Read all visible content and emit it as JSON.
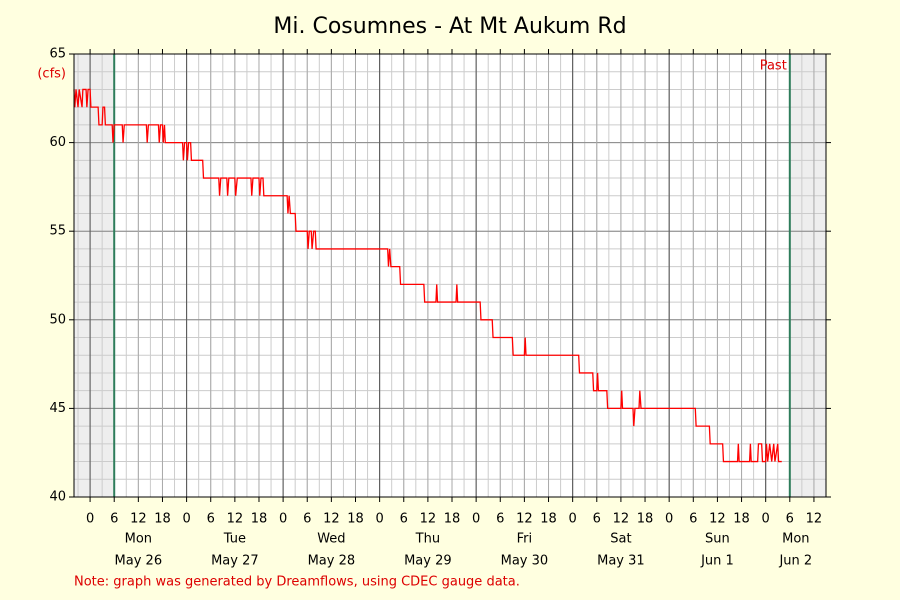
{
  "chart_data": {
    "type": "line",
    "title": "Mi. Cosumnes - At Mt Aukum Rd",
    "y_unit": "(cfs)",
    "annotation": "Past",
    "note": "Note: graph was generated by Dreamflows, using CDEC gauge data.",
    "xlim": [
      -4,
      183
    ],
    "ylim": [
      40,
      65
    ],
    "yticks": [
      40,
      45,
      50,
      55,
      60,
      65
    ],
    "xticks": [
      0,
      6,
      12,
      18,
      {
        "value": 24,
        "label": "0"
      },
      {
        "value": 30,
        "label": "6"
      },
      {
        "value": 36,
        "label": "12"
      },
      {
        "value": 42,
        "label": "18"
      },
      {
        "value": 48,
        "label": "0"
      },
      {
        "value": 54,
        "label": "6"
      },
      {
        "value": 60,
        "label": "12"
      },
      {
        "value": 66,
        "label": "18"
      },
      {
        "value": 72,
        "label": "0"
      },
      {
        "value": 78,
        "label": "6"
      },
      {
        "value": 84,
        "label": "12"
      },
      {
        "value": 90,
        "label": "18"
      },
      {
        "value": 96,
        "label": "0"
      },
      {
        "value": 102,
        "label": "6"
      },
      {
        "value": 108,
        "label": "12"
      },
      {
        "value": 114,
        "label": "18"
      },
      {
        "value": 120,
        "label": "0"
      },
      {
        "value": 126,
        "label": "6"
      },
      {
        "value": 132,
        "label": "12"
      },
      {
        "value": 138,
        "label": "18"
      },
      {
        "value": 144,
        "label": "0"
      },
      {
        "value": 150,
        "label": "6"
      },
      {
        "value": 156,
        "label": "12"
      },
      {
        "value": 162,
        "label": "18"
      },
      {
        "value": 168,
        "label": "0"
      },
      {
        "value": 174,
        "label": "6"
      },
      {
        "value": 180,
        "label": "12"
      }
    ],
    "days": [
      {
        "value": 0,
        "weekday": "Mon",
        "date": "May 26"
      },
      {
        "value": 24,
        "weekday": "Tue",
        "date": "May 27"
      },
      {
        "value": 48,
        "weekday": "Wed",
        "date": "May 28"
      },
      {
        "value": 72,
        "weekday": "Thu",
        "date": "May 29"
      },
      {
        "value": 96,
        "weekday": "Fri",
        "date": "May 30"
      },
      {
        "value": 120,
        "weekday": "Sat",
        "date": "May 31"
      },
      {
        "value": 144,
        "weekday": "Sun",
        "date": "Jun 1"
      },
      {
        "value": 168,
        "weekday": "Mon",
        "date": "Jun 2"
      }
    ],
    "grid": true,
    "grid_minor": {
      "x_step": 3,
      "y_step": 1
    },
    "shaded_before": 6,
    "shaded_after": 174,
    "series": [
      {
        "color": "#ff0000",
        "x": [
          -4,
          -3.8,
          -3.5,
          -3,
          -2.7,
          -2,
          -1.8,
          -1,
          -0.8,
          -0.5,
          0,
          0.2,
          2,
          2.2,
          3,
          3.2,
          3.6,
          3.8,
          5.5,
          5.7,
          6,
          8,
          8.2,
          8.5,
          14,
          14.2,
          14.5,
          17,
          17.2,
          17.5,
          18,
          18.2,
          18.5,
          18.7,
          23,
          23.2,
          23.5,
          24,
          24.2,
          24.5,
          25,
          25.2,
          28,
          28.2,
          32,
          32.2,
          32.5,
          34,
          34.2,
          34.5,
          36,
          36.2,
          36.6,
          40,
          40.2,
          40.5,
          42,
          42.2,
          42.5,
          43,
          43.2,
          49,
          49.2,
          49.5,
          49.8,
          51,
          51.2,
          54,
          54.2,
          54.5,
          55,
          55.2,
          55.6,
          56,
          56.2,
          74,
          74.2,
          74.5,
          74.8,
          77,
          77.2,
          83,
          83.2,
          86,
          86.2,
          86.4,
          91,
          91.2,
          91.4,
          97,
          97.2,
          100,
          100.2,
          105,
          105.2,
          108,
          108.2,
          108.4,
          121.5,
          121.7,
          125,
          125.2,
          126,
          126.2,
          126.4,
          128.5,
          128.7,
          132,
          132.2,
          132.4,
          135,
          135.2,
          135.5,
          136.5,
          136.7,
          137,
          150.5,
          150.7,
          154,
          154.2,
          157.3,
          157.5,
          161,
          161.2,
          161.4,
          164,
          164.2,
          164.4,
          166,
          166.2,
          167,
          167.2,
          168,
          168.2,
          168.5,
          169,
          169.5,
          170,
          170.3,
          171,
          171.2,
          172
        ],
        "values": [
          63,
          62,
          63,
          62,
          63,
          62,
          63,
          63,
          62,
          63,
          63,
          62,
          62,
          61,
          61,
          62,
          62,
          61,
          61,
          60,
          61,
          61,
          60,
          61,
          61,
          60,
          61,
          61,
          60,
          61,
          61,
          60,
          61,
          60,
          60,
          59,
          60,
          60,
          59,
          60,
          60,
          59,
          59,
          58,
          58,
          57,
          58,
          58,
          57,
          58,
          58,
          57,
          58,
          58,
          57,
          58,
          58,
          57,
          58,
          58,
          57,
          57,
          56,
          57,
          56,
          56,
          55,
          55,
          54,
          55,
          55,
          54,
          55,
          55,
          54,
          54,
          53,
          54,
          53,
          53,
          52,
          52,
          51,
          51,
          52,
          51,
          51,
          52,
          51,
          51,
          50,
          50,
          49,
          49,
          48,
          48,
          49,
          48,
          48,
          47,
          47,
          46,
          46,
          47,
          46,
          46,
          45,
          45,
          46,
          45,
          45,
          44,
          45,
          45,
          46,
          45,
          45,
          44,
          44,
          43,
          43,
          42,
          42,
          43,
          42,
          42,
          43,
          42,
          42,
          43,
          43,
          42,
          42,
          43,
          42,
          43,
          42,
          43,
          42,
          43,
          42,
          42
        ]
      }
    ]
  }
}
